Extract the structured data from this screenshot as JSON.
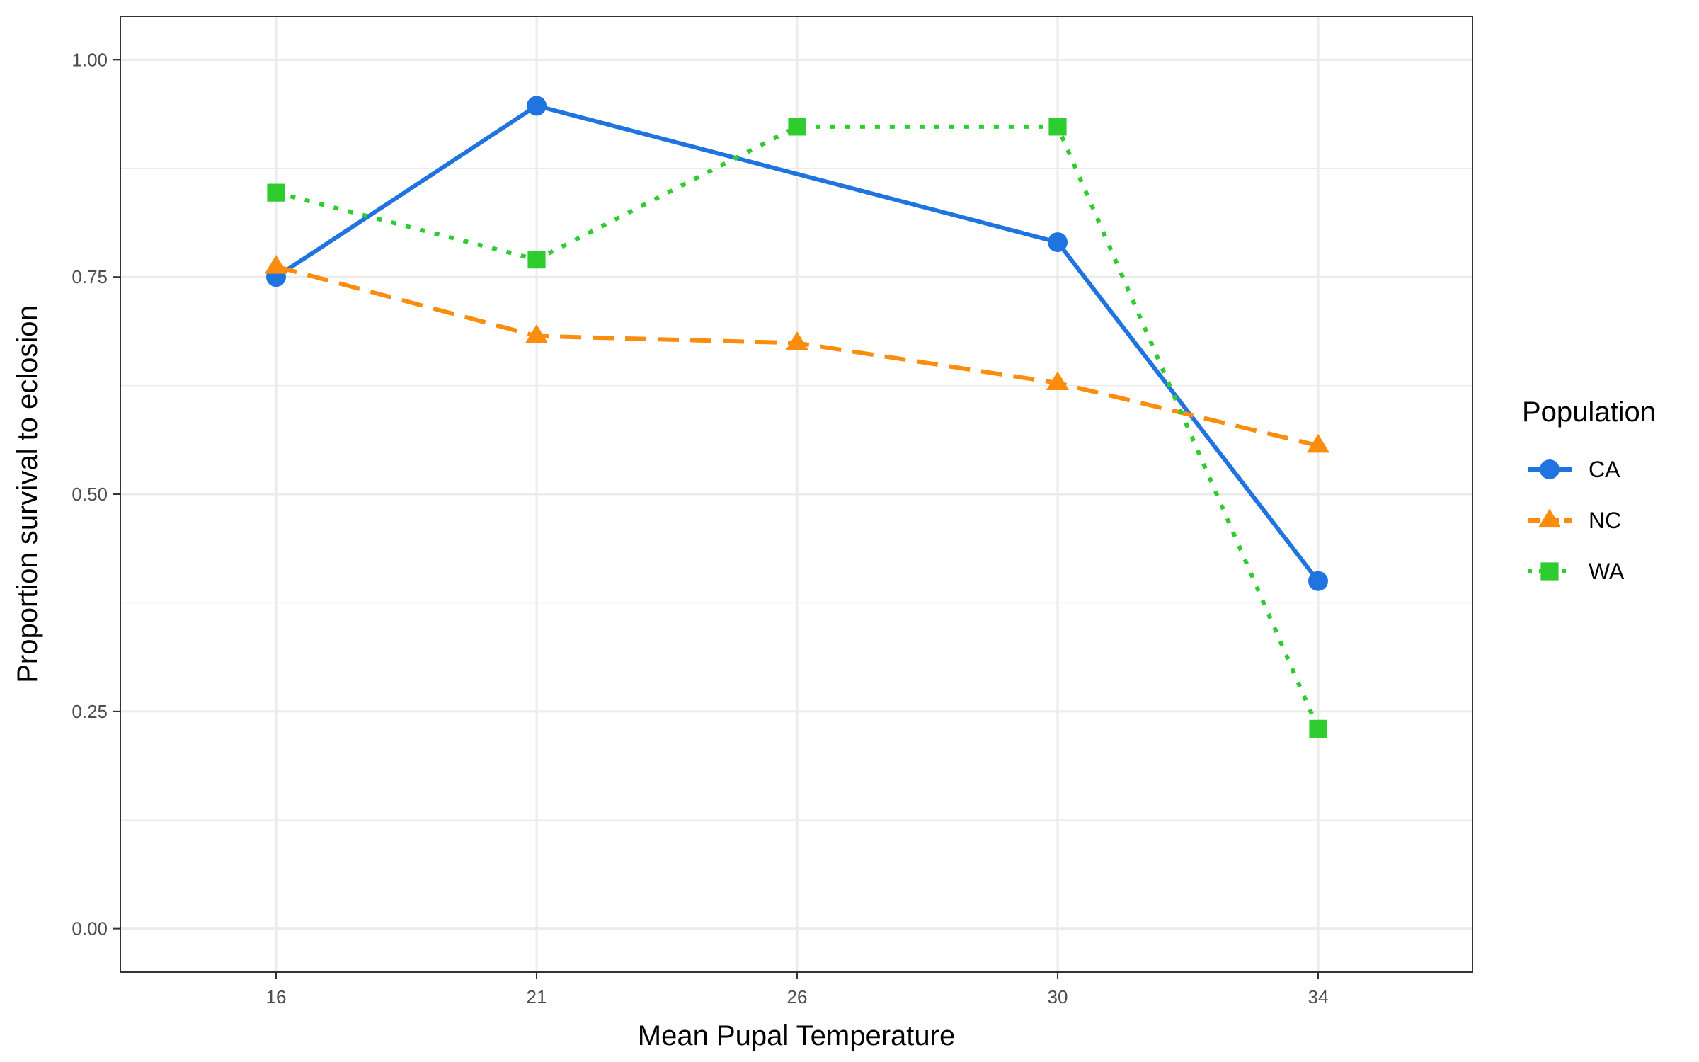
{
  "chart_data": {
    "type": "line",
    "title": "",
    "xlabel": "Mean Pupal Temperature",
    "ylabel": "Proportion survival to eclosion",
    "categories": [
      "16",
      "21",
      "26",
      "30",
      "34"
    ],
    "ylim": [
      -0.05,
      1.05
    ],
    "yticks": [
      "0.00",
      "0.25",
      "0.50",
      "0.75",
      "1.00"
    ],
    "ytick_values": [
      0,
      0.25,
      0.5,
      0.75,
      1.0
    ],
    "grid": true,
    "legend": {
      "title": "Population",
      "position": "right"
    },
    "series": [
      {
        "name": "CA",
        "color": "#1f74e0",
        "marker": "circle",
        "line": "solid",
        "values": [
          0.75,
          0.947,
          null,
          0.79,
          0.4
        ]
      },
      {
        "name": "NC",
        "color": "#fa8d0d",
        "marker": "triangle",
        "line": "dashed",
        "values": [
          0.762,
          0.682,
          0.674,
          0.628,
          0.556
        ]
      },
      {
        "name": "WA",
        "color": "#2ecc2e",
        "marker": "square",
        "line": "dotted",
        "values": [
          0.847,
          0.77,
          0.923,
          0.923,
          0.23
        ]
      }
    ]
  }
}
